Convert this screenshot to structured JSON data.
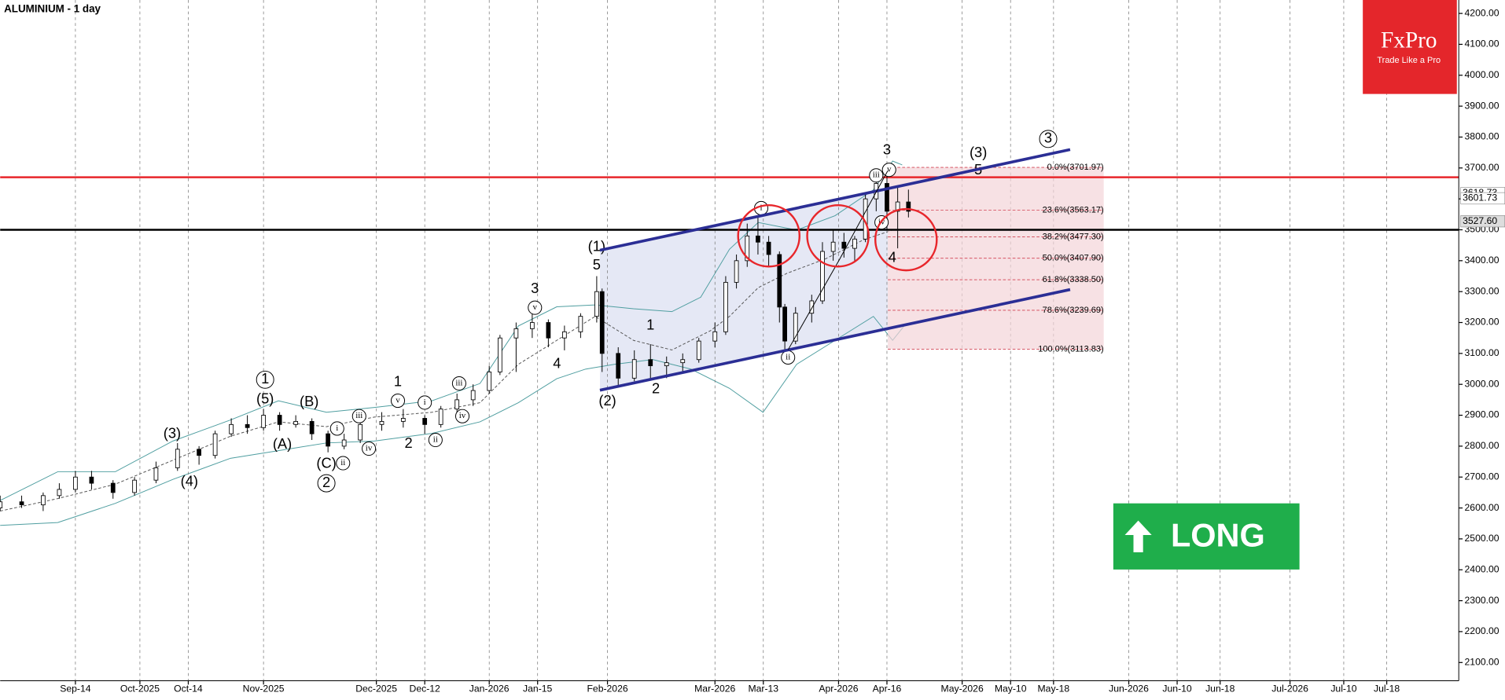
{
  "chart_data": {
    "type": "candlestick",
    "title": "ALUMINIUM - 1 day",
    "xlim": [
      0,
      271.4
    ],
    "ylim": [
      2100,
      4200
    ],
    "yticks": [
      {
        "value": 2100,
        "label": "2100.00"
      },
      {
        "value": 2200,
        "label": "2200.00"
      },
      {
        "value": 2300,
        "label": "2300.00"
      },
      {
        "value": 2400,
        "label": "2400.00"
      },
      {
        "value": 2500,
        "label": "2500.00"
      },
      {
        "value": 2600,
        "label": "2600.00"
      },
      {
        "value": 2700,
        "label": "2700.00"
      },
      {
        "value": 2800,
        "label": "2800.00"
      },
      {
        "value": 2900,
        "label": "2900.00"
      },
      {
        "value": 3000,
        "label": "3000.00"
      },
      {
        "value": 3100,
        "label": "3100.00"
      },
      {
        "value": 3200,
        "label": "3200.00"
      },
      {
        "value": 3300,
        "label": "3300.00"
      },
      {
        "value": 3400,
        "label": "3400.00"
      },
      {
        "value": 3500,
        "label": "3500.00"
      },
      {
        "value": 3600,
        "label": "3600.00"
      },
      {
        "value": 3700,
        "label": "3700.00"
      },
      {
        "value": 3800,
        "label": "3800.00"
      },
      {
        "value": 3900,
        "label": "3900.00"
      },
      {
        "value": 4000,
        "label": "4000.00"
      },
      {
        "value": 4100,
        "label": "4100.00"
      },
      {
        "value": 4200,
        "label": "4200.00"
      }
    ],
    "xticks": [
      {
        "value": 14,
        "label": "Sep-14"
      },
      {
        "value": 26,
        "label": "Oct-2025"
      },
      {
        "value": 35,
        "label": "Oct-14"
      },
      {
        "value": 49,
        "label": "Nov-2025"
      },
      {
        "value": 70,
        "label": "Dec-2025"
      },
      {
        "value": 79,
        "label": "Dec-12"
      },
      {
        "value": 91,
        "label": "Jan-2026"
      },
      {
        "value": 100,
        "label": "Jan-15"
      },
      {
        "value": 113,
        "label": "Feb-2026"
      },
      {
        "value": 133,
        "label": "Mar-2026"
      },
      {
        "value": 142,
        "label": "Mar-13"
      },
      {
        "value": 156,
        "label": "Apr-2026"
      },
      {
        "value": 165,
        "label": "Apr-16"
      },
      {
        "value": 179,
        "label": "May-2026"
      },
      {
        "value": 188,
        "label": "May-10"
      },
      {
        "value": 196,
        "label": "May-18"
      },
      {
        "value": 210,
        "label": "Jun-2026"
      },
      {
        "value": 219,
        "label": "Jun-10"
      },
      {
        "value": 227,
        "label": "Jun-18"
      },
      {
        "value": 240,
        "label": "Jul-2026"
      },
      {
        "value": 250,
        "label": "Jul-10"
      },
      {
        "value": 258,
        "label": "Jul-18"
      }
    ],
    "candles": {
      "x": [
        0,
        4,
        8,
        11,
        14,
        17,
        21,
        25,
        29,
        33,
        37,
        40,
        43,
        46,
        49,
        52,
        55,
        58,
        61,
        64,
        67,
        71,
        75,
        79,
        82,
        85,
        88,
        91,
        93,
        96,
        99,
        102,
        105,
        108,
        111,
        112,
        115,
        118,
        121,
        124,
        127,
        130,
        133,
        135,
        137,
        139,
        141,
        143,
        145,
        146,
        148,
        151,
        153,
        155,
        157,
        159,
        161,
        163,
        165,
        167,
        169
      ],
      "open": [
        2600,
        2620,
        2610,
        2640,
        2660,
        2700,
        2680,
        2650,
        2690,
        2730,
        2790,
        2770,
        2840,
        2870,
        2860,
        2900,
        2870,
        2880,
        2840,
        2800,
        2820,
        2870,
        2880,
        2890,
        2870,
        2920,
        2950,
        2980,
        3040,
        3150,
        3180,
        3200,
        3150,
        3170,
        3220,
        3300,
        3100,
        3020,
        3080,
        3060,
        3070,
        3080,
        3140,
        3170,
        3330,
        3400,
        3480,
        3460,
        3420,
        3250,
        3140,
        3230,
        3270,
        3430,
        3460,
        3440,
        3470,
        3600,
        3650,
        3560,
        3590
      ],
      "high": [
        2640,
        2640,
        2650,
        2680,
        2720,
        2720,
        2690,
        2700,
        2750,
        2810,
        2800,
        2850,
        2890,
        2900,
        2920,
        2910,
        2900,
        2890,
        2850,
        2840,
        2880,
        2910,
        2920,
        2900,
        2930,
        2970,
        3000,
        3060,
        3160,
        3200,
        3240,
        3210,
        3190,
        3230,
        3350,
        3310,
        3120,
        3110,
        3130,
        3090,
        3100,
        3150,
        3200,
        3350,
        3420,
        3520,
        3540,
        3480,
        3430,
        3260,
        3250,
        3290,
        3460,
        3500,
        3490,
        3480,
        3620,
        3680,
        3710,
        3640,
        3630
      ],
      "low": [
        2590,
        2600,
        2590,
        2630,
        2650,
        2660,
        2630,
        2640,
        2680,
        2720,
        2740,
        2760,
        2830,
        2840,
        2850,
        2850,
        2860,
        2820,
        2780,
        2790,
        2810,
        2850,
        2860,
        2840,
        2860,
        2900,
        2930,
        2970,
        3030,
        3040,
        3150,
        3120,
        3110,
        3150,
        3200,
        3040,
        2990,
        3010,
        3020,
        3020,
        3040,
        3070,
        3120,
        3160,
        3310,
        3380,
        3420,
        3380,
        3200,
        3110,
        3130,
        3200,
        3260,
        3400,
        3410,
        3400,
        3460,
        3560,
        3500,
        3440,
        3540
      ],
      "close": [
        2620,
        2610,
        2640,
        2660,
        2700,
        2680,
        2650,
        2690,
        2730,
        2790,
        2770,
        2840,
        2870,
        2860,
        2900,
        2870,
        2880,
        2840,
        2800,
        2820,
        2870,
        2880,
        2890,
        2870,
        2920,
        2950,
        2980,
        3040,
        3150,
        3180,
        3200,
        3150,
        3170,
        3220,
        3300,
        3100,
        3020,
        3080,
        3060,
        3070,
        3080,
        3140,
        3170,
        3330,
        3400,
        3480,
        3460,
        3420,
        3250,
        3140,
        3230,
        3270,
        3430,
        3460,
        3440,
        3470,
        3600,
        3650,
        3560,
        3590,
        3560
      ]
    },
    "hlines": [
      {
        "value": 3670,
        "color": "#e8262b"
      },
      {
        "value": 3500,
        "color": "#000000"
      }
    ],
    "fib_levels": [
      {
        "label": "0.0%(3701.97)",
        "value": 3701.97
      },
      {
        "label": "23.6%(3563.17)",
        "value": 3563.17
      },
      {
        "label": "38.2%(3477.30)",
        "value": 3477.3
      },
      {
        "label": "50.0%(3407.90)",
        "value": 3407.9
      },
      {
        "label": "61.8%(3338.50)",
        "value": 3338.5
      },
      {
        "label": "78.6%(3239.69)",
        "value": 3239.69
      },
      {
        "label": "100.0%(3113.83)",
        "value": 3113.83
      }
    ],
    "price_labels": [
      {
        "label": "3618.73",
        "value": 3618.73
      },
      {
        "label": "3601.73",
        "value": 3601.73
      },
      {
        "label": "3527.60",
        "value": 3527.6
      }
    ],
    "annotations": [
      {
        "text": "(1)",
        "x": 111,
        "y": 3443
      },
      {
        "text": "5",
        "x": 111,
        "y": 3384
      },
      {
        "text": "3",
        "x": 99.5,
        "y": 3307
      },
      {
        "text": "v",
        "x": 99.5,
        "y": 3248,
        "circled": true
      },
      {
        "text": "4",
        "x": 103.6,
        "y": 3065
      },
      {
        "text": "1",
        "x": 121,
        "y": 3189
      },
      {
        "text": "2",
        "x": 122,
        "y": 2984
      },
      {
        "text": "(2)",
        "x": 113,
        "y": 2944
      },
      {
        "text": "3",
        "x": 165,
        "y": 3756
      },
      {
        "text": "(3)",
        "x": 182,
        "y": 3747
      },
      {
        "text": "5",
        "x": 182,
        "y": 3691
      },
      {
        "text": "3",
        "x": 195,
        "y": 3794,
        "circled": true
      },
      {
        "text": "i",
        "x": 141.6,
        "y": 3570,
        "circled": true
      },
      {
        "text": "ii",
        "x": 146.6,
        "y": 3087,
        "circled": true
      },
      {
        "text": "iii",
        "x": 163,
        "y": 3676,
        "circled": true
      },
      {
        "text": "v",
        "x": 165.4,
        "y": 3694,
        "circled": true
      },
      {
        "text": "iv",
        "x": 164,
        "y": 3524,
        "circled": true
      },
      {
        "text": "4",
        "x": 166,
        "y": 3408
      },
      {
        "text": "1",
        "x": 49.3,
        "y": 3015,
        "circled": true
      },
      {
        "text": "(5)",
        "x": 49.3,
        "y": 2950
      },
      {
        "text": "(B)",
        "x": 57.5,
        "y": 2941
      },
      {
        "text": "(A)",
        "x": 52.5,
        "y": 2804
      },
      {
        "text": "(3)",
        "x": 32,
        "y": 2838
      },
      {
        "text": "(4)",
        "x": 35.2,
        "y": 2683
      },
      {
        "text": "(C)",
        "x": 60.7,
        "y": 2742
      },
      {
        "text": "ii",
        "x": 63.8,
        "y": 2745,
        "circled": true
      },
      {
        "text": "2",
        "x": 60.7,
        "y": 2680,
        "circled": true
      },
      {
        "text": "i",
        "x": 62.7,
        "y": 2857,
        "circled": true
      },
      {
        "text": "iii",
        "x": 66.8,
        "y": 2897,
        "circled": true
      },
      {
        "text": "iv",
        "x": 68.6,
        "y": 2792,
        "circled": true
      },
      {
        "text": "1",
        "x": 74,
        "y": 3006
      },
      {
        "text": "v",
        "x": 74,
        "y": 2947,
        "circled": true
      },
      {
        "text": "2",
        "x": 76,
        "y": 2807
      },
      {
        "text": "i",
        "x": 79,
        "y": 2941,
        "circled": true
      },
      {
        "text": "ii",
        "x": 81,
        "y": 2820,
        "circled": true
      },
      {
        "text": "iii",
        "x": 85.4,
        "y": 3003,
        "circled": true
      },
      {
        "text": "iv",
        "x": 86,
        "y": 2897,
        "circled": true
      }
    ]
  },
  "logo": {
    "brand": "FxPro",
    "tagline": "Trade Like a Pro"
  },
  "signal": {
    "label": "LONG"
  }
}
